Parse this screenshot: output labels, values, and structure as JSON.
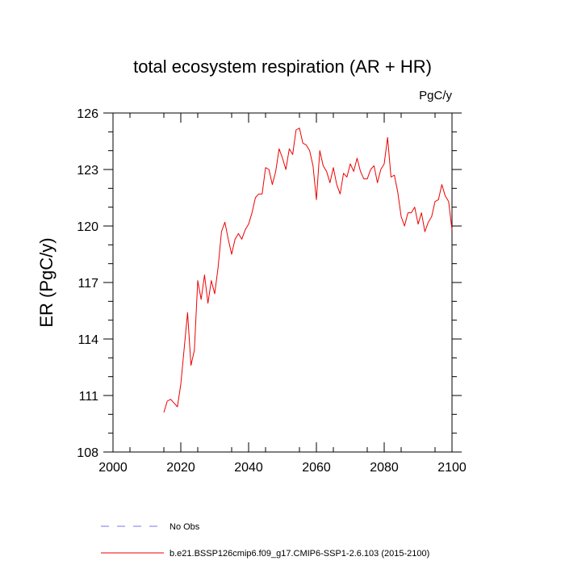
{
  "chart_data": {
    "type": "line",
    "title": "total ecosystem respiration (AR + HR)",
    "units_label": "PgC/y",
    "xlabel": "",
    "ylabel": "ER  (PgC/y)",
    "xlim": [
      2000,
      2100
    ],
    "ylim": [
      108,
      126
    ],
    "x_ticks": [
      2000,
      2020,
      2040,
      2060,
      2080,
      2100
    ],
    "y_ticks": [
      108,
      111,
      114,
      117,
      120,
      123,
      126
    ],
    "x_tick_labels": [
      "2000",
      "2020",
      "2040",
      "2060",
      "2080",
      "2100"
    ],
    "y_tick_labels": [
      "108",
      "111",
      "114",
      "117",
      "120",
      "123",
      "126"
    ],
    "grid": false,
    "legend_position": "bottom",
    "legend": [
      {
        "label": "No Obs",
        "color": "#7777ee",
        "style": "dashed"
      },
      {
        "label": "b.e21.BSSP126cmip6.f09_g17.CMIP6-SSP1-2.6.103 (2015-2100)",
        "color": "#ee0000",
        "style": "solid"
      }
    ],
    "series": [
      {
        "name": "b.e21.BSSP126cmip6.f09_g17.CMIP6-SSP1-2.6.103 (2015-2100)",
        "color": "#ee0000",
        "x": [
          2015,
          2016,
          2017,
          2018,
          2019,
          2020,
          2021,
          2022,
          2023,
          2024,
          2025,
          2026,
          2027,
          2028,
          2029,
          2030,
          2031,
          2032,
          2033,
          2034,
          2035,
          2036,
          2037,
          2038,
          2039,
          2040,
          2041,
          2042,
          2043,
          2044,
          2045,
          2046,
          2047,
          2048,
          2049,
          2050,
          2051,
          2052,
          2053,
          2054,
          2055,
          2056,
          2057,
          2058,
          2059,
          2060,
          2061,
          2062,
          2063,
          2064,
          2065,
          2066,
          2067,
          2068,
          2069,
          2070,
          2071,
          2072,
          2073,
          2074,
          2075,
          2076,
          2077,
          2078,
          2079,
          2080,
          2081,
          2082,
          2083,
          2084,
          2085,
          2086,
          2087,
          2088,
          2089,
          2090,
          2091,
          2092,
          2093,
          2094,
          2095,
          2096,
          2097,
          2098,
          2099,
          2100
        ],
        "values": [
          110.1,
          110.7,
          110.8,
          110.6,
          110.4,
          111.6,
          113.5,
          115.4,
          112.6,
          113.4,
          117.1,
          116.1,
          117.4,
          115.9,
          117.1,
          116.4,
          117.8,
          119.7,
          120.2,
          119.3,
          118.5,
          119.3,
          119.6,
          119.3,
          119.8,
          120.1,
          120.7,
          121.5,
          121.7,
          121.7,
          123.1,
          123.0,
          122.2,
          122.9,
          124.1,
          123.6,
          123.0,
          124.1,
          123.8,
          125.1,
          125.2,
          124.4,
          124.3,
          124.0,
          123.2,
          121.4,
          124.0,
          123.2,
          122.9,
          122.3,
          123.1,
          122.2,
          121.7,
          122.8,
          122.6,
          123.3,
          122.9,
          123.6,
          122.9,
          122.5,
          122.5,
          123.0,
          123.2,
          122.3,
          123.0,
          123.3,
          124.7,
          122.6,
          122.7,
          121.8,
          120.5,
          120.0,
          120.7,
          120.7,
          121.0,
          120.1,
          120.7,
          119.7,
          120.2,
          120.5,
          121.3,
          121.4,
          122.2,
          121.6,
          121.3,
          119.8
        ]
      },
      {
        "name": "No Obs",
        "color": "#7777ee",
        "x": [],
        "values": []
      }
    ]
  }
}
